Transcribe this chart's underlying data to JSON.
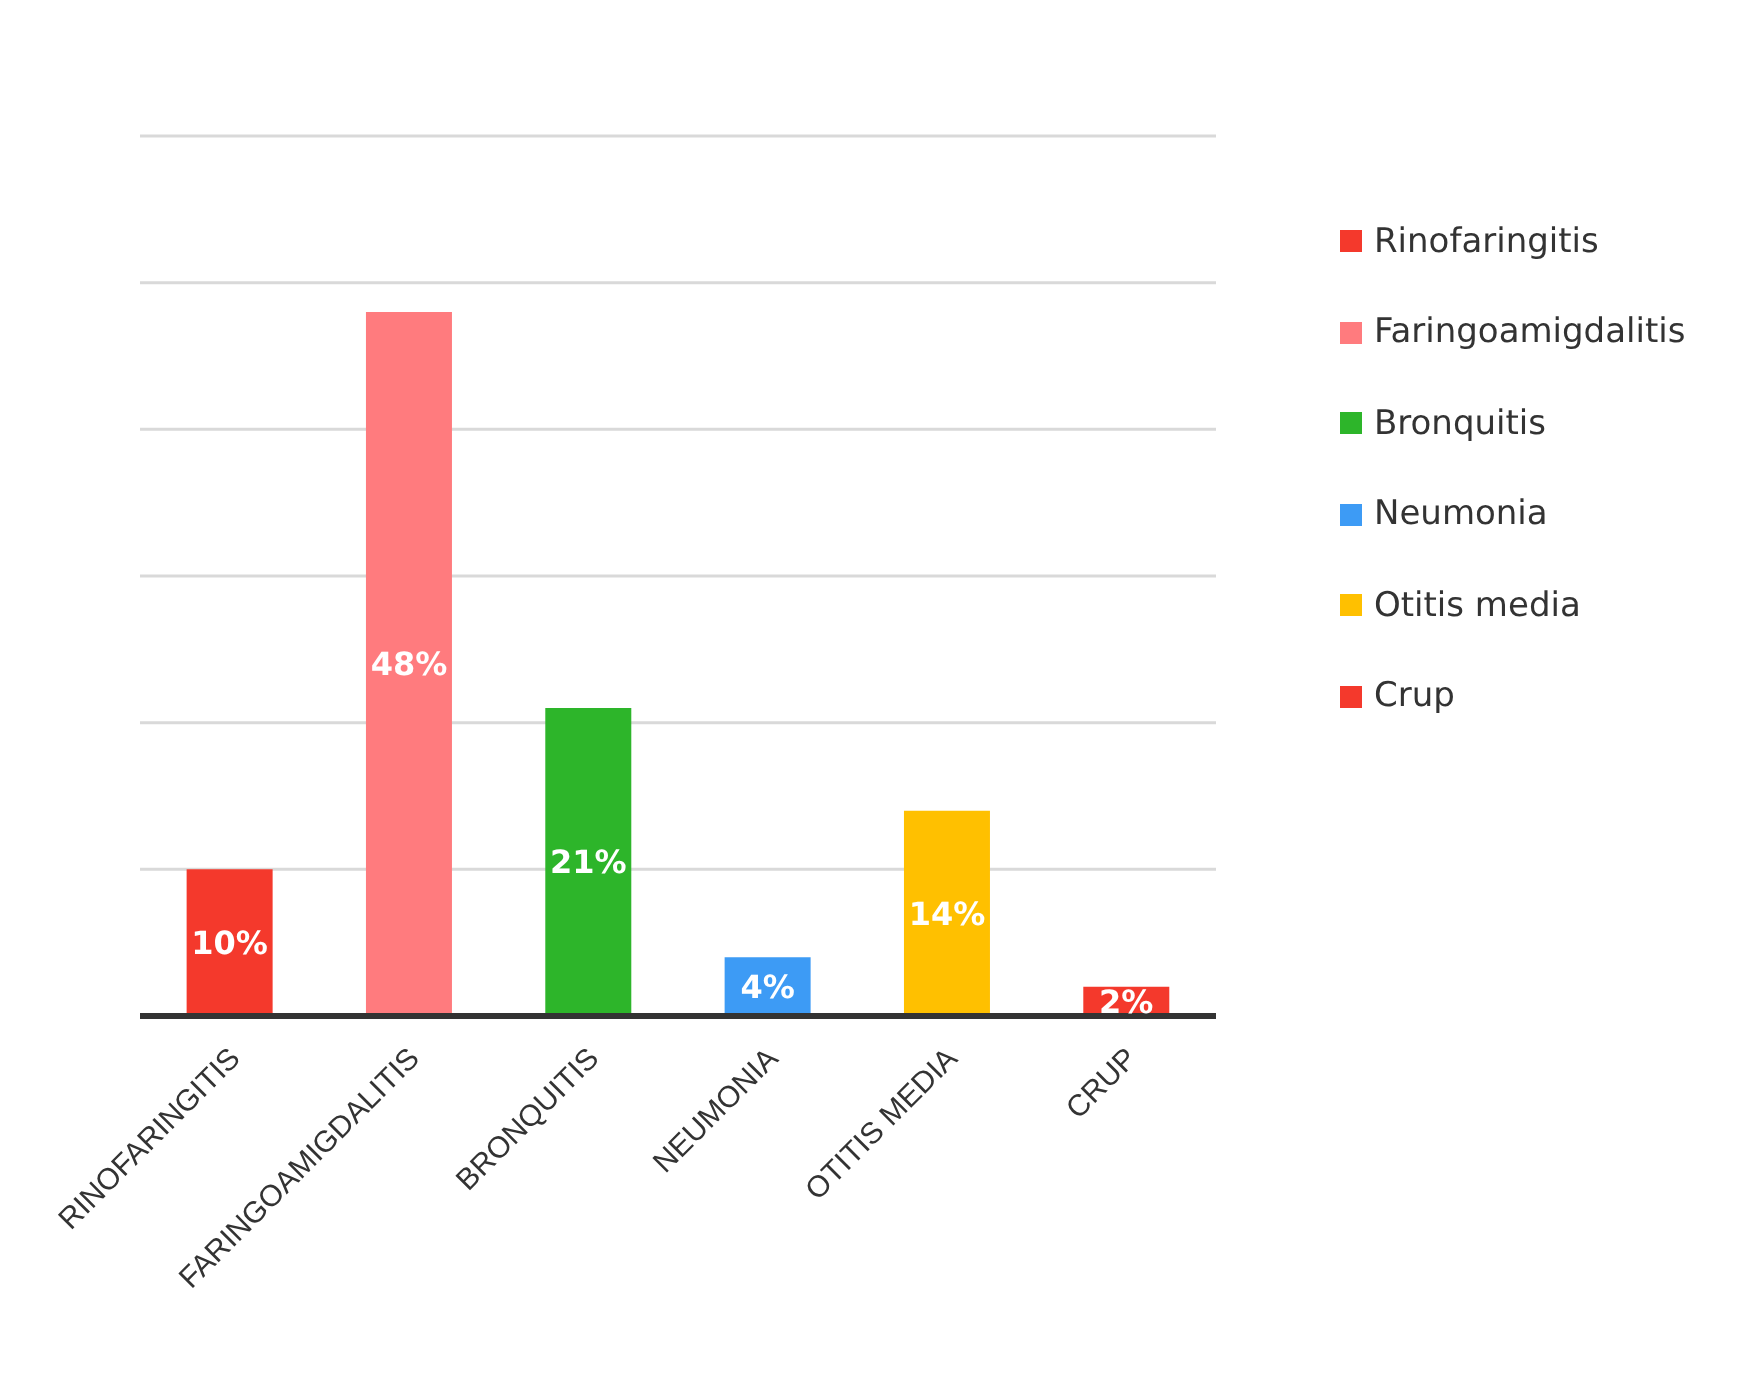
{
  "chart_data": {
    "type": "bar",
    "categories": [
      "RINOFARINGITIS",
      "FARINGOAMIGDALITIS",
      "BRONQUITIS",
      "NEUMONIA",
      "OTITIS MEDIA",
      "CRUP"
    ],
    "stacked": true,
    "series": [
      {
        "name": "Rinofaringitis",
        "color": "#f4392c",
        "values": [
          10,
          null,
          null,
          null,
          null,
          null
        ],
        "value_labels": [
          "10%",
          null,
          null,
          null,
          null,
          null
        ]
      },
      {
        "name": "Faringoamigdalitis",
        "color": "#ff7b7e",
        "values": [
          null,
          48,
          null,
          null,
          null,
          null
        ],
        "value_labels": [
          null,
          "48%",
          null,
          null,
          null,
          null
        ]
      },
      {
        "name": "Bronquitis",
        "color": "#2db52a",
        "values": [
          null,
          null,
          21,
          null,
          null,
          null
        ],
        "value_labels": [
          null,
          null,
          "21%",
          null,
          null,
          null
        ]
      },
      {
        "name": "Neumonia",
        "color": "#3d9bf5",
        "values": [
          null,
          null,
          null,
          4,
          null,
          null
        ],
        "value_labels": [
          null,
          null,
          null,
          "4%",
          null,
          null
        ]
      },
      {
        "name": "Otitis media",
        "color": "#ffc000",
        "values": [
          null,
          null,
          null,
          null,
          14,
          null
        ],
        "value_labels": [
          null,
          null,
          null,
          null,
          "14%",
          null
        ]
      },
      {
        "name": "Crup",
        "color": "#f4392c",
        "values": [
          null,
          null,
          null,
          null,
          null,
          2
        ],
        "value_labels": [
          null,
          null,
          null,
          null,
          null,
          "2%"
        ]
      }
    ],
    "ylim": [
      0,
      60
    ],
    "yticks": [
      {
        "value": 0,
        "label": null
      },
      {
        "value": 10,
        "label": null
      },
      {
        "value": 20,
        "label": null
      },
      {
        "value": 30,
        "label": null
      },
      {
        "value": 40,
        "label": null
      },
      {
        "value": 50,
        "label": null
      },
      {
        "value": 60,
        "label": null
      }
    ],
    "tick_labels": "x",
    "grid": "y",
    "legend": "top right"
  }
}
